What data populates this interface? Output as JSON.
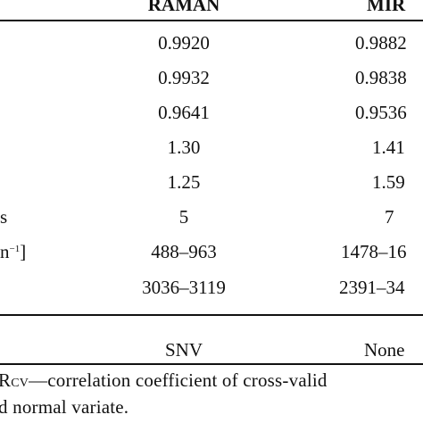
{
  "table": {
    "header": {
      "raman": "RAMAN",
      "mir": "MIR"
    },
    "rows": [
      {
        "label": "",
        "raman": "0.9920",
        "mir": "0.9882"
      },
      {
        "label": "",
        "raman": "0.9932",
        "mir": "0.9838"
      },
      {
        "label": "",
        "raman": "0.9641",
        "mir": "0.9536"
      },
      {
        "label": "",
        "raman": "1.30",
        "mir": "1.41"
      },
      {
        "label": "",
        "raman": "1.25",
        "mir": "1.59"
      },
      {
        "label": "s",
        "raman": "5",
        "mir": "7"
      },
      {
        "label": "n",
        "label_sup": "−1",
        "label_end": "]",
        "raman": "488–963",
        "mir": "1478–16"
      },
      {
        "label": "",
        "raman": "3036–3119",
        "mir": "2391–34"
      }
    ],
    "preprocessing": {
      "raman": "SNV",
      "mir": "None"
    }
  },
  "footnote": {
    "line1_prefix": "R",
    "line1_sub": "CV",
    "line1_text": "—correlation coefficient of cross-valid",
    "line2_text": "d normal variate."
  }
}
